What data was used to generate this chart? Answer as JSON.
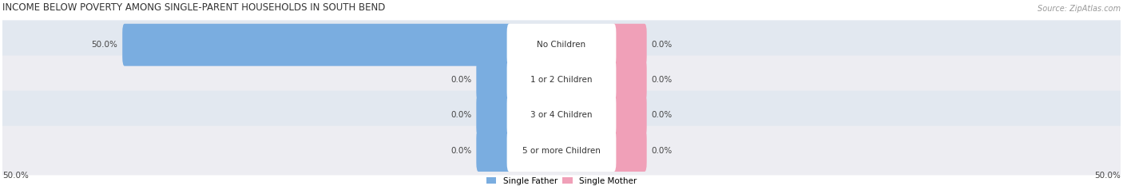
{
  "title": "INCOME BELOW POVERTY AMONG SINGLE-PARENT HOUSEHOLDS IN SOUTH BEND",
  "source": "Source: ZipAtlas.com",
  "categories": [
    "No Children",
    "1 or 2 Children",
    "3 or 4 Children",
    "5 or more Children"
  ],
  "single_father_values": [
    50.0,
    0.0,
    0.0,
    0.0
  ],
  "single_mother_values": [
    0.0,
    0.0,
    0.0,
    0.0
  ],
  "father_color": "#7aade0",
  "mother_color": "#f0a0b8",
  "row_bg_color_odd": "#e2e8f0",
  "row_bg_color_even": "#ededf2",
  "max_value": 50.0,
  "axis_label_left": "50.0%",
  "axis_label_right": "50.0%",
  "title_fontsize": 8.5,
  "label_fontsize": 7.5,
  "category_fontsize": 7.5,
  "source_fontsize": 7.0,
  "legend_fontsize": 7.5
}
